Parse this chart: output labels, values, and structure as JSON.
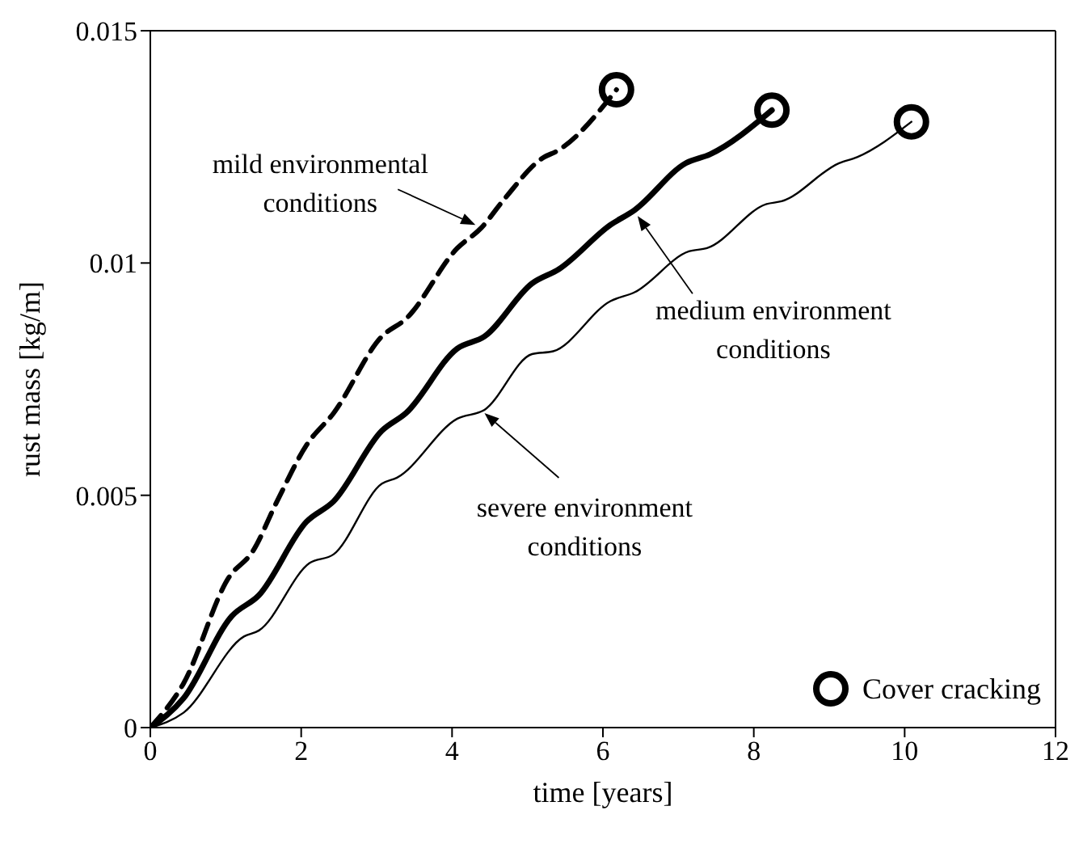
{
  "chart_data": {
    "type": "line",
    "xlabel": "time [years]",
    "ylabel": "rust mass [kg/m]",
    "xlim": [
      0,
      12
    ],
    "xticks": [
      0,
      2,
      4,
      6,
      8,
      10,
      12
    ],
    "ylim": [
      0,
      0.015
    ],
    "yticks": [
      0,
      0.005,
      0.01,
      0.015
    ],
    "grid": false,
    "legend": "bottom right",
    "marker": "none",
    "series": [
      {
        "color": "#000000",
        "line_style": "dashed",
        "x": [
          0,
          0.44,
          1.04,
          1.36,
          1.68,
          2.07,
          2.43,
          3.07,
          3.39,
          4.07,
          4.39,
          4.67,
          5.22,
          5.38,
          6.18
        ],
        "values": [
          0,
          0.00095,
          0.00323,
          0.0038,
          0.00487,
          0.00608,
          0.00677,
          0.00842,
          0.0088,
          0.01032,
          0.01076,
          0.01133,
          0.01228,
          0.0124,
          0.01373
        ]
      },
      {
        "color": "#000000",
        "line_style": "solid",
        "x": [
          0,
          0.44,
          1.08,
          1.44,
          2.07,
          2.43,
          3.07,
          3.39,
          4.07,
          4.43,
          5.06,
          5.42,
          6.1,
          6.42,
          7.1,
          7.42,
          8.24
        ],
        "values": [
          0,
          0.00063,
          0.0024,
          0.00285,
          0.00443,
          0.00487,
          0.00639,
          0.00677,
          0.00816,
          0.00842,
          0.00956,
          0.00987,
          0.01082,
          0.01114,
          0.01215,
          0.01234,
          0.01329
        ]
      },
      {
        "color": "#000000",
        "line_style": "solid",
        "x": [
          0,
          0.44,
          1.24,
          1.44,
          2.11,
          2.43,
          3.07,
          3.27,
          4.07,
          4.43,
          5.06,
          5.34,
          6.1,
          6.42,
          7.14,
          7.38,
          8.17,
          8.37,
          9.13,
          9.37,
          10.09
        ],
        "values": [
          0,
          0.00032,
          0.00196,
          0.00209,
          0.00354,
          0.00373,
          0.00525,
          0.00538,
          0.00665,
          0.00684,
          0.00804,
          0.0081,
          0.00918,
          0.00937,
          0.01025,
          0.01032,
          0.01127,
          0.01133,
          0.01215,
          0.01228,
          0.01304
        ]
      },
      {
        "type": "scatter",
        "name": "Cover cracking",
        "color": "#000000",
        "marker": "circle",
        "x": [
          6.18,
          8.24,
          10.09
        ],
        "values": [
          0.01373,
          0.01329,
          0.01304
        ]
      }
    ],
    "annotations": [
      {
        "text": "mild environmental\nconditions",
        "x": 4.31,
        "y": 0.01082
      },
      {
        "text": "medium environment\nconditions",
        "x": 6.46,
        "y": 0.01101
      },
      {
        "text": "severe environment\nconditions",
        "x": 4.43,
        "y": 0.00677
      }
    ]
  }
}
